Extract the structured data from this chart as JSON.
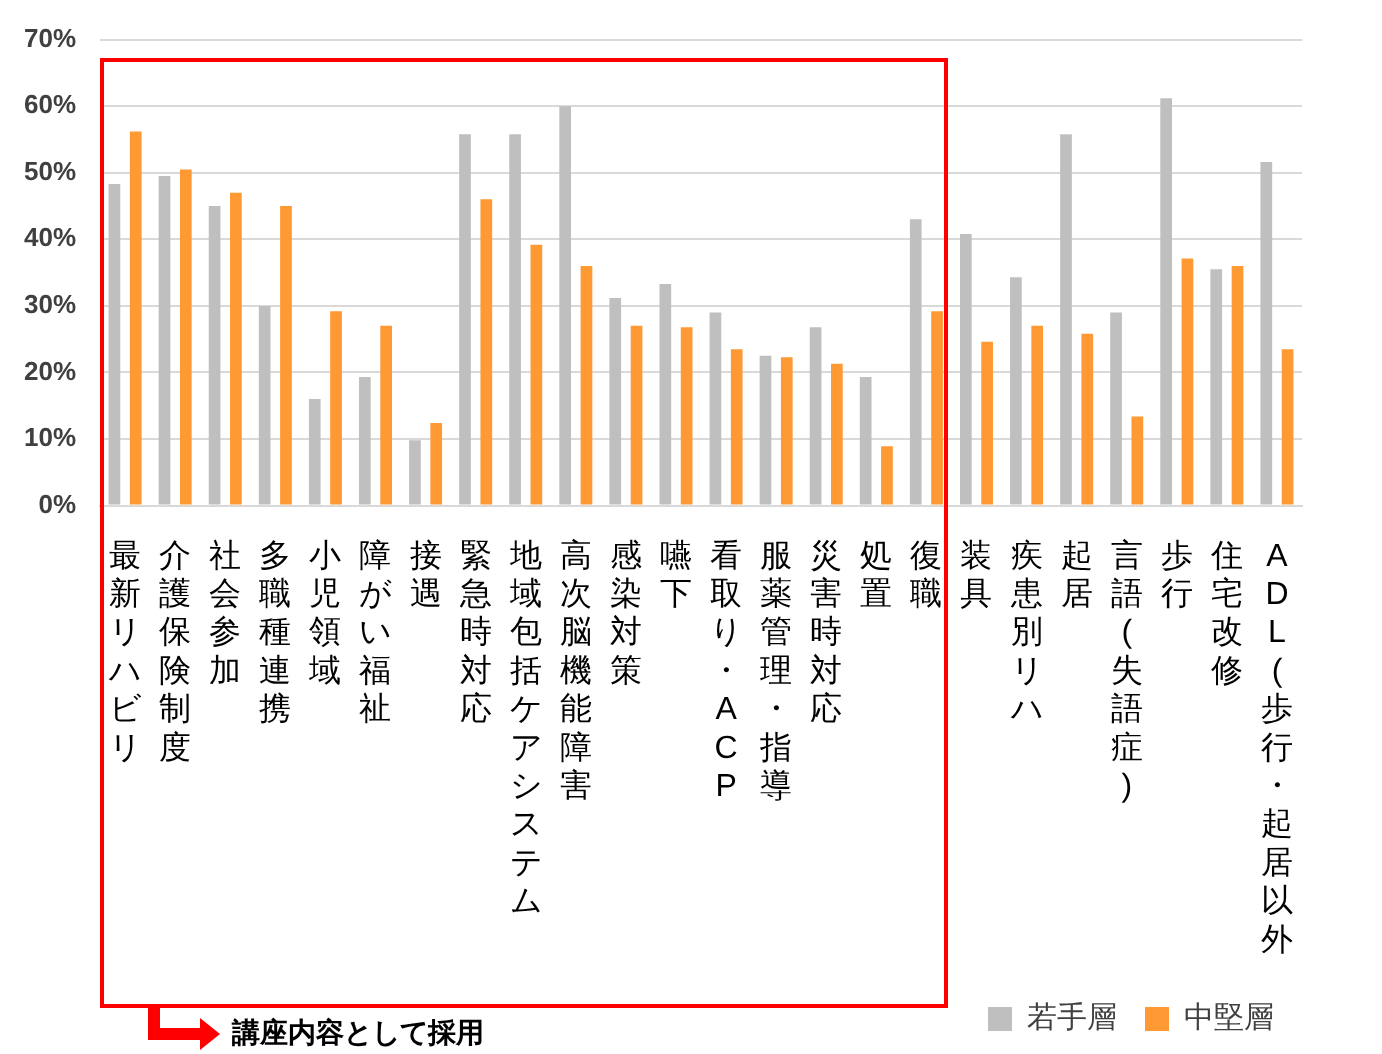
{
  "chart_data": {
    "type": "bar",
    "categories": [
      "最新リハビリ",
      "介護保険制度",
      "社会参加",
      "多職種連携",
      "小児領域",
      "障がい福祉",
      "接遇",
      "緊急時対応",
      "地域包括ケアシステム",
      "高次脳機能障害",
      "感染対策",
      "嚥下",
      "看取り・ACP",
      "服薬管理・指導",
      "災害時対応",
      "処置",
      "復職",
      "装具",
      "疾患別リハ",
      "起居",
      "言語(失語症)",
      "歩行",
      "住宅改修",
      "ADL(歩行・起居以外"
    ],
    "series": [
      {
        "name": "若手層",
        "color": "#bfbfbf",
        "values": [
          48.3,
          49.5,
          45,
          30,
          16,
          19.3,
          9.8,
          55.8,
          55.8,
          60,
          31.2,
          33.3,
          29,
          22.5,
          26.8,
          19.3,
          43,
          40.8,
          34.3,
          55.8,
          29,
          61.2,
          35.5,
          51.6
        ]
      },
      {
        "name": "中堅層",
        "color": "#ff9933",
        "values": [
          56.2,
          50.5,
          47,
          45,
          29.2,
          27,
          12.4,
          46,
          39.2,
          36,
          27,
          26.8,
          23.5,
          22.3,
          21.3,
          8.9,
          29.2,
          24.6,
          27,
          25.8,
          13.4,
          37.1,
          36,
          23.5
        ]
      }
    ],
    "ylim": [
      0,
      70
    ],
    "yticks": [
      {
        "value": 0,
        "label": "0%"
      },
      {
        "value": 10,
        "label": "10%"
      },
      {
        "value": 20,
        "label": "20%"
      },
      {
        "value": 30,
        "label": "30%"
      },
      {
        "value": 40,
        "label": "40%"
      },
      {
        "value": 50,
        "label": "50%"
      },
      {
        "value": 60,
        "label": "60%"
      },
      {
        "value": 70,
        "label": "70%"
      }
    ],
    "grid": "y",
    "legend": "bottom right",
    "annotations": [
      "講座内容として採用"
    ]
  }
}
